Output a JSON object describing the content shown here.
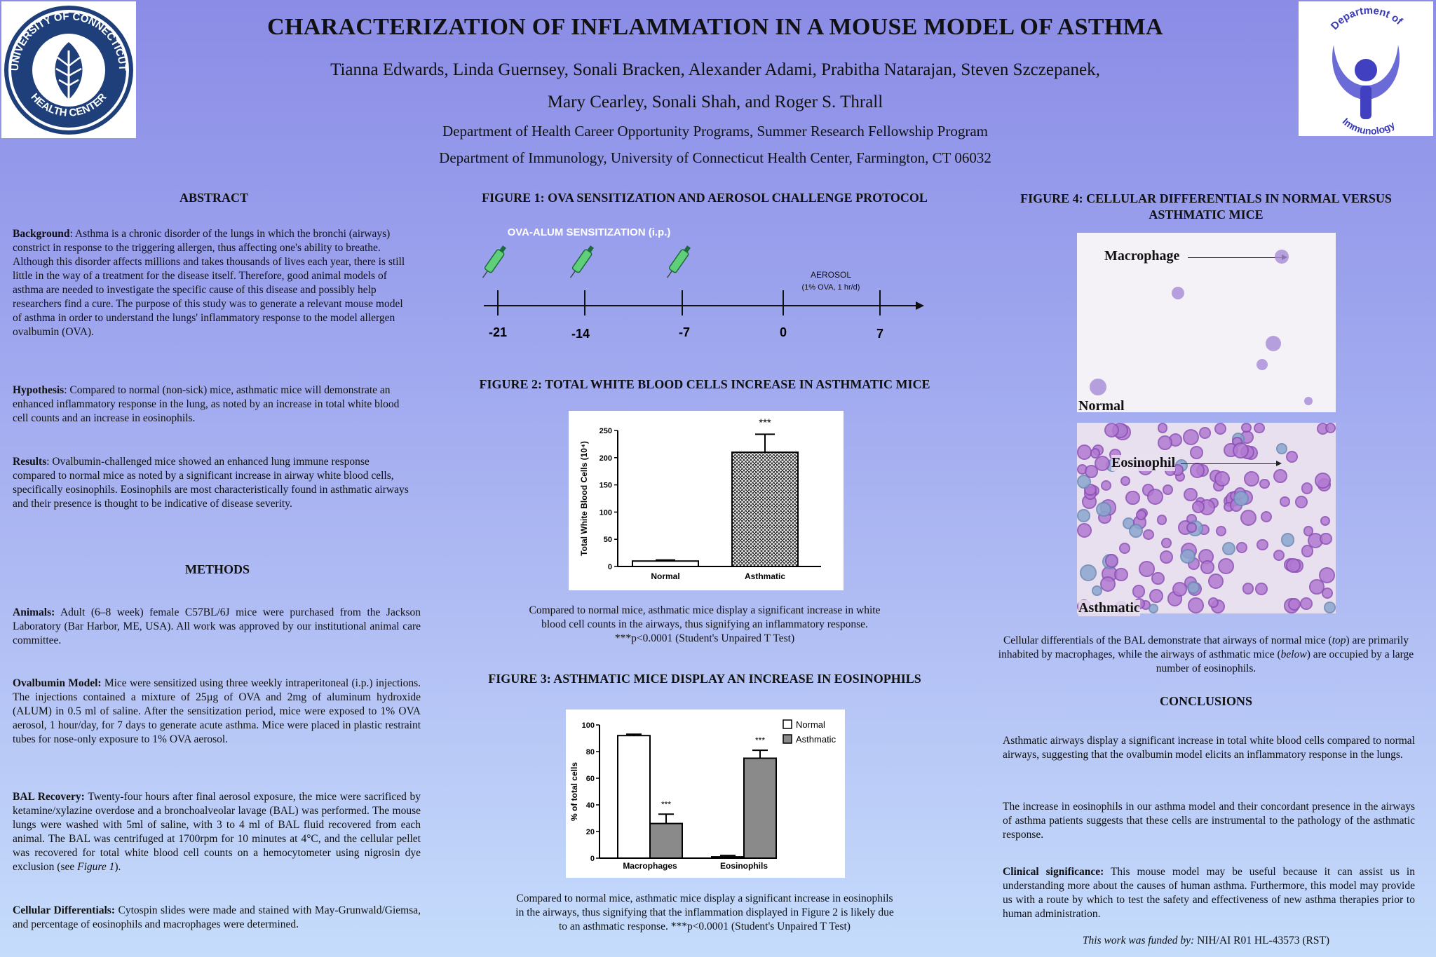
{
  "header": {
    "title": "CHARACTERIZATION OF INFLAMMATION IN A MOUSE MODEL OF ASTHMA",
    "authors_line1": "Tianna Edwards, Linda Guernsey, Sonali Bracken, Alexander Adami, Prabitha Natarajan, Steven Szczepanek,",
    "authors_line2": "Mary Cearley, Sonali Shah, and Roger S. Thrall",
    "dept_line1": "Department of Health Career Opportunity Programs, Summer Research Fellowship Program",
    "dept_line2": "Department of Immunology, University of Connecticut Health Center, Farmington, CT 06032"
  },
  "logos": {
    "left_top": "UNIVERSITY OF CONNECTICUT",
    "left_bottom": "HEALTH CENTER",
    "right_top": "Department of",
    "right_bottom": "Immunology"
  },
  "abstract": {
    "heading": "ABSTRACT",
    "background_label": "Background",
    "background_text": ": Asthma is a chronic disorder of the lungs in which the bronchi (airways) constrict in response to the triggering allergen, thus affecting one's ability to breathe. Although this disorder affects millions and takes thousands of lives each year, there is still little in the way of a treatment for the disease itself.  Therefore, good animal models of asthma are needed to investigate the specific cause of this disease and possibly help researchers find a cure. The purpose of this study was to generate a relevant mouse model of asthma in order to understand the lungs' inflammatory response to the model allergen ovalbumin (OVA).",
    "hypothesis_label": "Hypothesis",
    "hypothesis_text": ": Compared to normal (non-sick) mice, asthmatic mice will demonstrate an enhanced inflammatory response in the lung, as noted by an increase in total white blood cell counts and an increase in eosinophils.",
    "results_label": "Results",
    "results_text": ": Ovalbumin-challenged mice showed an enhanced lung immune response compared to normal mice as noted by a significant increase in airway white blood cells, specifically eosinophils.  Eosinophils are most characteristically found in asthmatic airways and their presence is thought to be indicative of disease severity."
  },
  "methods": {
    "heading": "METHODS",
    "animals_label": "Animals:",
    "animals_text": " Adult (6–8 week) female C57BL/6J mice were purchased from the Jackson Laboratory (Bar Harbor, ME, USA).  All work was approved by our institutional animal care committee.",
    "ova_label": "Ovalbumin Model:",
    "ova_text": " Mice were sensitized using three weekly intraperitoneal (i.p.) injections. The injections contained a mixture of 25µg of OVA and 2mg of aluminum hydroxide (ALUM) in 0.5 ml of saline. After the sensitization period, mice were exposed to 1% OVA aerosol, 1 hour/day, for 7 days to generate acute asthma. Mice were placed in plastic restraint tubes for nose-only exposure to 1% OVA aerosol.",
    "bal_label": "BAL Recovery:",
    "bal_text": " Twenty-four hours after final aerosol exposure, the mice were sacrificed by ketamine/xylazine overdose and a bronchoalveolar lavage (BAL) was performed. The mouse lungs were washed with 5ml of saline, with 3 to 4 ml of BAL fluid recovered from each animal. The BAL was centrifuged at 1700rpm for 10 minutes at 4°C, and the cellular pellet was recovered for total white blood cell counts on a hemocytometer using nigrosin dye exclusion (see ",
    "bal_ref": "Figure 1",
    "bal_end": ").",
    "diff_label": "Cellular Differentials:",
    "diff_text": " Cytospin slides were made and stained with May-Grunwald/Giemsa, and percentage of eosinophils and macrophages were determined."
  },
  "figure1": {
    "heading": "FIGURE 1: OVA SENSITIZATION AND AEROSOL CHALLENGE PROTOCOL",
    "sensitization_label": "OVA-ALUM  SENSITIZATION (i.p.)",
    "aerosol_label": "AEROSOL",
    "aerosol_detail": "(1% OVA, 1 hr/d)",
    "ticks": [
      "-21",
      "-14",
      "-7",
      "0",
      "7"
    ]
  },
  "figure2": {
    "heading": "FIGURE 2:  TOTAL WHITE BLOOD CELLS INCREASE IN ASTHMATIC MICE",
    "caption_line1": "Compared to normal mice, asthmatic mice display a significant increase in white",
    "caption_line2": "blood cell counts in the airways, thus signifying an inflammatory response.",
    "caption_line3": "***p<0.0001 (Student's Unpaired T Test)"
  },
  "figure3": {
    "heading": "FIGURE 3: ASTHMATIC MICE DISPLAY AN INCREASE IN EOSINOPHILS",
    "caption_line1": "Compared to normal mice, asthmatic mice display a significant increase in eosinophils",
    "caption_line2": "in the airways, thus signifying that the inflammation displayed in Figure 2 is likely due",
    "caption_line3": "to an asthmatic response. ***p<0.0001 (Student's Unpaired T Test)"
  },
  "figure4": {
    "heading_line1": "FIGURE 4: CELLULAR DIFFERENTIALS IN NORMAL VERSUS",
    "heading_line2": "ASTHMATIC MICE",
    "macrophage_label": "Macrophage",
    "normal_label": "Normal",
    "eosinophil_label": "Eosinophil",
    "asthmatic_label": "Asthmatic",
    "caption_part1": "Cellular differentials of the BAL demonstrate that airways of normal mice  (",
    "caption_top": "top",
    "caption_part2": ") are primarily inhabited by macrophages, while the airways of asthmatic mice (",
    "caption_below": "below",
    "caption_part3": ") are occupied by a large number of eosinophils."
  },
  "conclusions": {
    "heading": "CONCLUSIONS",
    "p1": "Asthmatic airways display a significant increase in  total white blood cells compared to normal airways, suggesting that the ovalbumin model elicits an inflammatory response in the lungs.",
    "p2": "The increase in eosinophils  in our asthma model and their concordant presence in the airways of asthma patients suggests that  these cells are instrumental to the pathology of the asthmatic response.",
    "clinical_label": "Clinical significance:",
    "clinical_text": " This mouse model may be useful because it can assist us in understanding more about the causes of human asthma. Furthermore, this model may provide us with a route by which to test the safety and effectiveness of new asthma therapies prior to human administration.",
    "funding_label": "This work was funded by:",
    "funding_text": " NIH/AI R01 HL-43573 (RST)"
  },
  "chart_data": [
    {
      "type": "bar",
      "title": "",
      "categories": [
        "Normal",
        "Asthmatic"
      ],
      "values": [
        10,
        210
      ],
      "errors": [
        2,
        33
      ],
      "significance": [
        "",
        "***"
      ],
      "xlabel": "",
      "ylabel": "Total White Blood Cells (10⁴)",
      "ylim": [
        0,
        250
      ],
      "yticks": [
        "0",
        "50",
        "100",
        "150",
        "200",
        "250"
      ],
      "colors": [
        "#ffffff",
        "#777777"
      ]
    },
    {
      "type": "bar",
      "title": "",
      "categories": [
        "Macrophages",
        "Eosinophils"
      ],
      "series": [
        {
          "name": "Normal",
          "values": [
            92,
            1
          ],
          "errors": [
            1,
            1
          ],
          "color": "#ffffff"
        },
        {
          "name": "Asthmatic",
          "values": [
            26,
            75
          ],
          "errors": [
            7,
            6
          ],
          "color": "#8a8a8a"
        }
      ],
      "significance": [
        "***",
        "***"
      ],
      "xlabel": "",
      "ylabel": "% of total cells",
      "ylim": [
        0,
        100
      ],
      "yticks": [
        "0",
        "20",
        "40",
        "60",
        "80",
        "100"
      ],
      "legend_position": "top-right"
    }
  ]
}
